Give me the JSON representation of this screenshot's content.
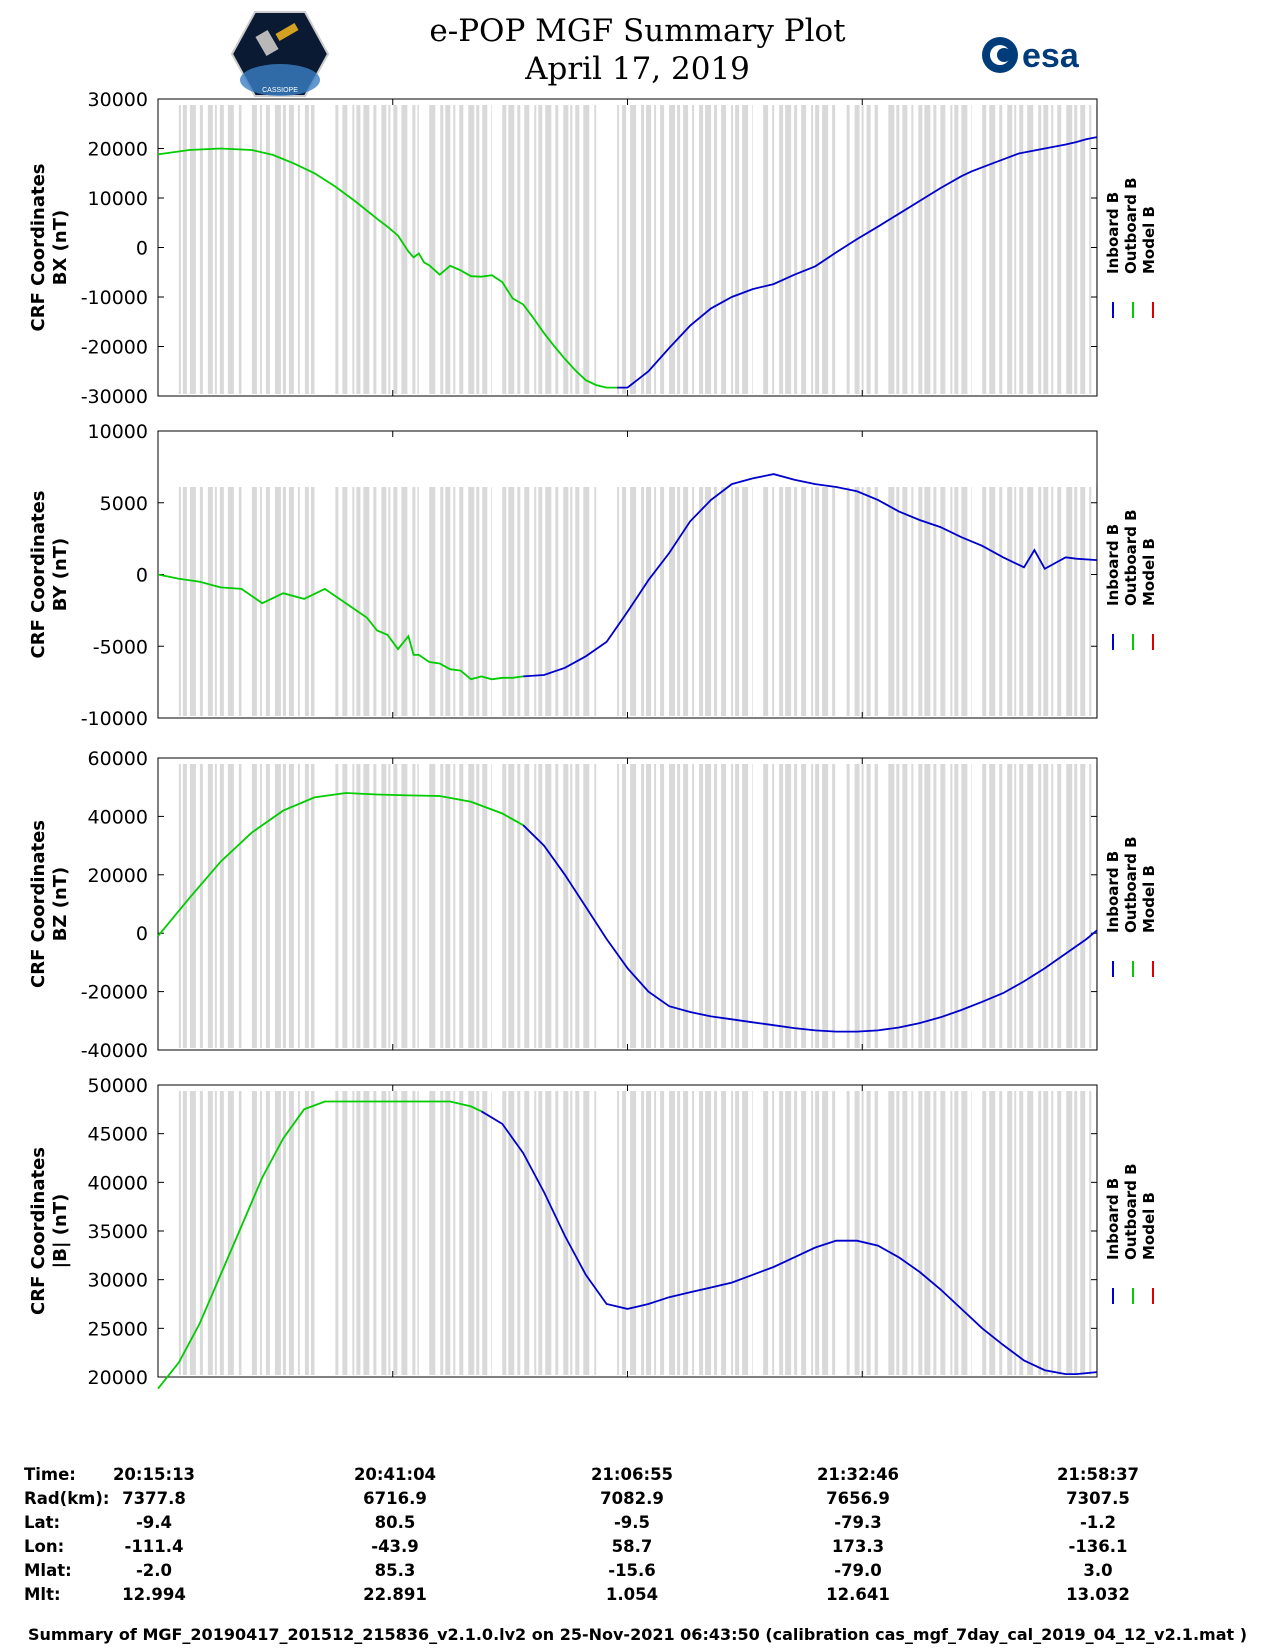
{
  "title": {
    "line1": "e-POP MGF Summary Plot",
    "line2": "April 17, 2019"
  },
  "logos": {
    "left": "CASSIOPE",
    "right": "esa"
  },
  "colors": {
    "inboard": "#0000cc",
    "outboard": "#00cc00",
    "model": "#dd0000",
    "shading": "#d9d9d9"
  },
  "chart_data": [
    {
      "type": "line",
      "ylabel": "CRF Coordinates\nBX (nT)",
      "ylim": [
        -30000,
        30000
      ],
      "yticks": [
        30000,
        20000,
        10000,
        0,
        -10000,
        -20000,
        -30000
      ],
      "ytick_labels": [
        "30000",
        "20000",
        "10000",
        "0",
        "-10000",
        "-20000",
        "-30000"
      ],
      "legend": [
        "Inboard B",
        "Outboard B",
        "Model B"
      ],
      "series": [
        {
          "name": "Outboard B",
          "x": [
            0,
            6,
            12,
            18,
            22,
            26,
            30,
            34,
            38,
            42,
            44,
            46,
            48,
            49,
            50,
            51,
            52,
            54,
            56,
            58,
            60,
            62,
            64,
            66,
            68,
            70,
            72,
            74,
            76,
            78,
            80,
            82,
            84,
            86,
            88
          ],
          "values": [
            18800,
            19700,
            20000,
            19700,
            18700,
            17000,
            15000,
            12300,
            9200,
            5800,
            4200,
            2400,
            -800,
            -2000,
            -1200,
            -3000,
            -3600,
            -5500,
            -3700,
            -4600,
            -5800,
            -5900,
            -5600,
            -7000,
            -10300,
            -11500,
            -14300,
            -17300,
            -20000,
            -22500,
            -24800,
            -26800,
            -27800,
            -28300,
            -28300
          ]
        },
        {
          "name": "Inboard B",
          "x": [
            88,
            90,
            94,
            98,
            102,
            106,
            110,
            114,
            118,
            122,
            126,
            130,
            134,
            138,
            142,
            146,
            150,
            154,
            156,
            160,
            165,
            170,
            174,
            176,
            178,
            180
          ],
          "values": [
            -28300,
            -28300,
            -25000,
            -20300,
            -15800,
            -12300,
            -10000,
            -8400,
            -7400,
            -5500,
            -3800,
            -1000,
            1700,
            4200,
            6800,
            9400,
            12000,
            14400,
            15400,
            17000,
            19000,
            20000,
            20800,
            21300,
            21900,
            22300
          ]
        }
      ],
      "grey_bands": [
        [
          4,
          16
        ],
        [
          18,
          30
        ],
        [
          34,
          50
        ],
        [
          52,
          64
        ],
        [
          66,
          84
        ],
        [
          88,
          114
        ],
        [
          116,
          130
        ],
        [
          132,
          138
        ],
        [
          140,
          156
        ],
        [
          158,
          180
        ]
      ]
    },
    {
      "type": "line",
      "ylabel": "CRF Coordinates\nBY (nT)",
      "ylim": [
        -10000,
        10000
      ],
      "yticks": [
        10000,
        5000,
        0,
        -5000,
        -10000
      ],
      "ytick_labels": [
        "10000",
        "5000",
        "0",
        "-5000",
        "-10000"
      ],
      "legend": [
        "Inboard B",
        "Outboard B",
        "Model B"
      ],
      "series": [
        {
          "name": "Outboard B",
          "x": [
            0,
            4,
            8,
            12,
            16,
            20,
            24,
            28,
            32,
            36,
            40,
            42,
            44,
            46,
            48,
            49,
            50,
            52,
            54,
            56,
            58,
            60,
            62,
            64,
            66,
            68,
            70
          ],
          "values": [
            0,
            -300,
            -500,
            -900,
            -1000,
            -2000,
            -1300,
            -1700,
            -1000,
            -2000,
            -3000,
            -3900,
            -4200,
            -5200,
            -4300,
            -5600,
            -5600,
            -6100,
            -6200,
            -6600,
            -6700,
            -7300,
            -7100,
            -7300,
            -7200,
            -7200,
            -7100
          ]
        },
        {
          "name": "Inboard B",
          "x": [
            70,
            74,
            78,
            82,
            86,
            90,
            94,
            98,
            102,
            106,
            110,
            114,
            118,
            122,
            126,
            130,
            134,
            138,
            142,
            146,
            150,
            154,
            158,
            162,
            166,
            168,
            170,
            172,
            174,
            176,
            180
          ],
          "values": [
            -7100,
            -7000,
            -6500,
            -5700,
            -4700,
            -2600,
            -400,
            1500,
            3700,
            5200,
            6300,
            6700,
            7000,
            6600,
            6300,
            6100,
            5800,
            5200,
            4400,
            3800,
            3300,
            2600,
            2000,
            1200,
            500,
            1700,
            400,
            800,
            1200,
            1100,
            1000
          ]
        }
      ],
      "grey_bands": [
        [
          4,
          16
        ],
        [
          18,
          30
        ],
        [
          34,
          50
        ],
        [
          52,
          64
        ],
        [
          66,
          84
        ],
        [
          88,
          114
        ],
        [
          116,
          130
        ],
        [
          132,
          138
        ],
        [
          140,
          156
        ],
        [
          158,
          180
        ]
      ]
    },
    {
      "type": "line",
      "ylabel": "CRF Coordinates\nBZ (nT)",
      "ylim": [
        -40000,
        60000
      ],
      "yticks": [
        60000,
        40000,
        20000,
        0,
        -20000,
        -40000
      ],
      "ytick_labels": [
        "60000",
        "40000",
        "20000",
        "0",
        "-20000",
        "-40000"
      ],
      "legend": [
        "Inboard B",
        "Outboard B",
        "Model B"
      ],
      "series": [
        {
          "name": "Outboard B",
          "x": [
            0,
            6,
            12,
            18,
            24,
            30,
            36,
            42,
            48,
            54,
            60,
            66,
            70
          ],
          "values": [
            -1000,
            12000,
            24500,
            34500,
            42000,
            46500,
            48000,
            47500,
            47200,
            47000,
            45000,
            41000,
            37000
          ]
        },
        {
          "name": "Inboard B",
          "x": [
            70,
            74,
            78,
            82,
            86,
            90,
            94,
            98,
            102,
            106,
            110,
            114,
            118,
            122,
            126,
            130,
            134,
            138,
            142,
            146,
            150,
            154,
            158,
            162,
            166,
            170,
            174,
            178,
            180
          ],
          "values": [
            37000,
            30000,
            20000,
            9000,
            -2000,
            -12000,
            -20000,
            -25000,
            -27000,
            -28500,
            -29500,
            -30500,
            -31500,
            -32500,
            -33300,
            -33700,
            -33700,
            -33300,
            -32300,
            -30800,
            -28800,
            -26300,
            -23500,
            -20500,
            -16500,
            -12000,
            -7000,
            -2000,
            1000
          ]
        }
      ],
      "grey_bands": [
        [
          4,
          16
        ],
        [
          18,
          30
        ],
        [
          34,
          50
        ],
        [
          52,
          64
        ],
        [
          66,
          84
        ],
        [
          88,
          114
        ],
        [
          116,
          130
        ],
        [
          132,
          138
        ],
        [
          140,
          156
        ],
        [
          158,
          180
        ]
      ]
    },
    {
      "type": "line",
      "ylabel": "CRF Coordinates\n|B| (nT)",
      "ylim": [
        20000,
        50000
      ],
      "yticks": [
        50000,
        45000,
        40000,
        35000,
        30000,
        25000,
        20000
      ],
      "ytick_labels": [
        "50000",
        "45000",
        "40000",
        "35000",
        "30000",
        "25000",
        "20000"
      ],
      "legend": [
        "Inboard B",
        "Outboard B",
        "Model B"
      ],
      "series": [
        {
          "name": "Outboard B",
          "x": [
            0,
            4,
            8,
            12,
            16,
            20,
            24,
            28,
            32,
            36,
            40,
            44,
            48,
            52,
            56,
            60,
            62
          ],
          "values": [
            18800,
            21500,
            25500,
            30500,
            35500,
            40500,
            44500,
            47500,
            48300,
            48300,
            48300,
            48300,
            48300,
            48300,
            48300,
            47800,
            47300
          ]
        },
        {
          "name": "Inboard B",
          "x": [
            62,
            66,
            70,
            74,
            78,
            82,
            86,
            90,
            94,
            98,
            102,
            106,
            110,
            114,
            118,
            122,
            126,
            130,
            134,
            138,
            142,
            146,
            150,
            154,
            158,
            162,
            166,
            170,
            174,
            176,
            180
          ],
          "values": [
            47300,
            46000,
            43000,
            39000,
            34500,
            30500,
            27500,
            27000,
            27500,
            28200,
            28700,
            29200,
            29700,
            30500,
            31300,
            32300,
            33300,
            34000,
            34000,
            33500,
            32300,
            30800,
            29000,
            27000,
            25000,
            23300,
            21700,
            20700,
            20300,
            20300,
            20500
          ]
        }
      ],
      "grey_bands": [
        [
          4,
          16
        ],
        [
          18,
          30
        ],
        [
          34,
          50
        ],
        [
          52,
          64
        ],
        [
          66,
          84
        ],
        [
          88,
          114
        ],
        [
          116,
          130
        ],
        [
          132,
          138
        ],
        [
          140,
          156
        ],
        [
          158,
          180
        ]
      ]
    }
  ],
  "table": {
    "labels": [
      "Time:",
      "Rad(km):",
      "Lat:",
      "Lon:",
      "Mlat:",
      "Mlt:"
    ],
    "columns": [
      [
        "20:15:13",
        "7377.8",
        "-9.4",
        "-111.4",
        "-2.0",
        "12.994"
      ],
      [
        "20:41:04",
        "6716.9",
        "80.5",
        "-43.9",
        "85.3",
        "22.891"
      ],
      [
        "21:06:55",
        "7082.9",
        "-9.5",
        "58.7",
        "-15.6",
        "1.054"
      ],
      [
        "21:32:46",
        "7656.9",
        "-79.3",
        "173.3",
        "-79.0",
        "12.641"
      ],
      [
        "21:58:37",
        "7307.5",
        "-1.2",
        "-136.1",
        "3.0",
        "13.032"
      ]
    ]
  },
  "footer": "Summary of MGF_20190417_201512_215836_v2.1.0.lv2 on 25-Nov-2021 06:43:50 (calibration cas_mgf_7day_cal_2019_04_12_v2.1.mat )"
}
